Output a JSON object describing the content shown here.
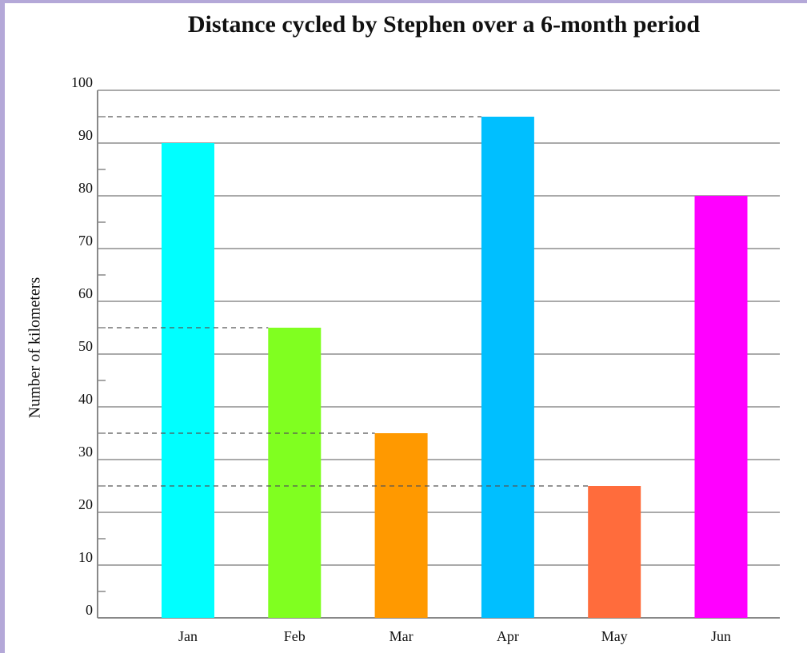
{
  "chart_data": {
    "type": "bar",
    "title": "Distance cycled by Stephen over a 6-month period",
    "y_label": "Number  of  kilometers",
    "categories": [
      "Jan",
      "Feb",
      "Mar",
      "Apr",
      "May",
      "Jun"
    ],
    "values": [
      90,
      55,
      35,
      95,
      25,
      80
    ],
    "colors": [
      "#00ffff",
      "#80ff20",
      "#ff9900",
      "#00bfff",
      "#ff6c3c",
      "#ff00ff"
    ],
    "ylim": [
      0,
      100
    ],
    "yticks": [
      0,
      10,
      20,
      30,
      40,
      50,
      60,
      70,
      80,
      90,
      100
    ],
    "grid": true
  }
}
